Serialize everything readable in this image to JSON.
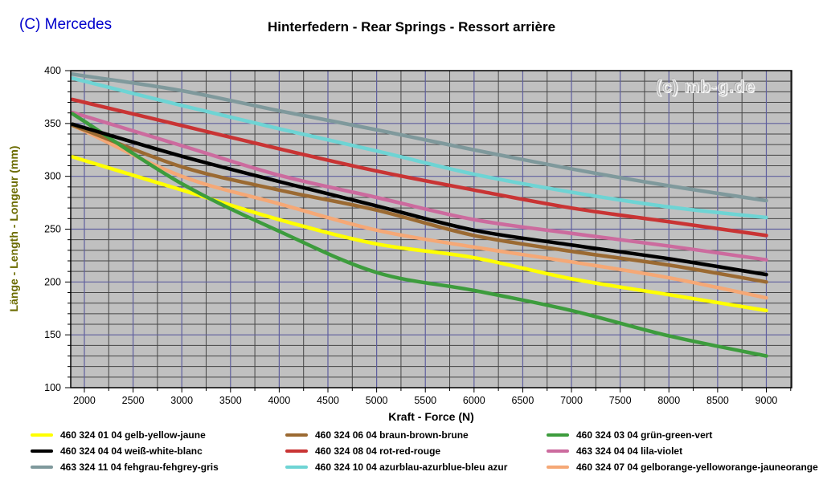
{
  "header": {
    "copyright": "(C) Mercedes",
    "title": "Hinterfedern - Rear Springs - Ressort arrière"
  },
  "watermark": "(c) mb-g.de",
  "chart_data": {
    "type": "line",
    "title": "Hinterfedern - Rear Springs - Ressort arrière",
    "xlabel": "Kraft - Force (N)",
    "ylabel": "Länge - Length - Longeur (mm)",
    "xlim": [
      1860,
      9260
    ],
    "ylim": [
      100,
      400
    ],
    "x_ticks": [
      2000,
      2500,
      3000,
      3500,
      4000,
      4500,
      5000,
      5500,
      6000,
      6500,
      7000,
      7500,
      8000,
      8500,
      9000
    ],
    "x_minor_step": 250,
    "y_ticks": [
      100,
      150,
      200,
      250,
      300,
      350,
      400
    ],
    "y_minor_step": 10,
    "grid": "both",
    "legend_position": "bottom",
    "x": [
      2000,
      3000,
      4000,
      5000,
      6000,
      7000,
      8000,
      9000
    ],
    "series": [
      {
        "name": "460 324 01 04 gelb-yellow-jaune",
        "color": "#ffff00",
        "values": [
          315,
          287,
          259,
          236,
          223,
          203,
          188,
          173
        ]
      },
      {
        "name": "460 324 04 04 weiß-white-blanc",
        "color": "#000000",
        "values": [
          346,
          319,
          295,
          272,
          249,
          235,
          222,
          207
        ]
      },
      {
        "name": "463 324 11 04 fehgrau-fehgrey-gris",
        "color": "#7f999c",
        "values": [
          395,
          381,
          362,
          344,
          325,
          307,
          291,
          277
        ]
      },
      {
        "name": "460 324 06 04 braun-brown-brune",
        "color": "#9b6a32",
        "values": [
          344,
          309,
          287,
          268,
          244,
          229,
          216,
          200
        ]
      },
      {
        "name": "460 324 08 04 rot-red-rouge",
        "color": "#c93434",
        "values": [
          370,
          348,
          326,
          305,
          287,
          270,
          257,
          244
        ]
      },
      {
        "name": "460 324 10 04 azurblau-azurblue-bleu azur",
        "color": "#6ed4d4",
        "values": [
          390,
          367,
          345,
          324,
          302,
          285,
          271,
          261
        ]
      },
      {
        "name": "460 324 03 04 grün-green-vert",
        "color": "#3d9c3d",
        "values": [
          352,
          293,
          248,
          209,
          192,
          173,
          149,
          130
        ]
      },
      {
        "name": "463 324 04 04 lila-violet",
        "color": "#cc6b9e",
        "values": [
          357,
          329,
          301,
          280,
          259,
          246,
          234,
          221
        ]
      },
      {
        "name": "460 324 07 04 gelborange-yelloworange-jauneorange",
        "color": "#f5a876",
        "values": [
          343,
          300,
          274,
          249,
          233,
          219,
          204,
          185
        ]
      }
    ],
    "legend_columns": [
      [
        0,
        1,
        2
      ],
      [
        3,
        4,
        5
      ],
      [
        6,
        7,
        8
      ]
    ]
  },
  "colors": {
    "plot_bg": "#c0c0c0",
    "grid_minor": "#454545",
    "grid_major": "#5f5f9e",
    "axis": "#000000",
    "copyright_blue": "#0000cc",
    "y_title": "#6b6b00"
  }
}
